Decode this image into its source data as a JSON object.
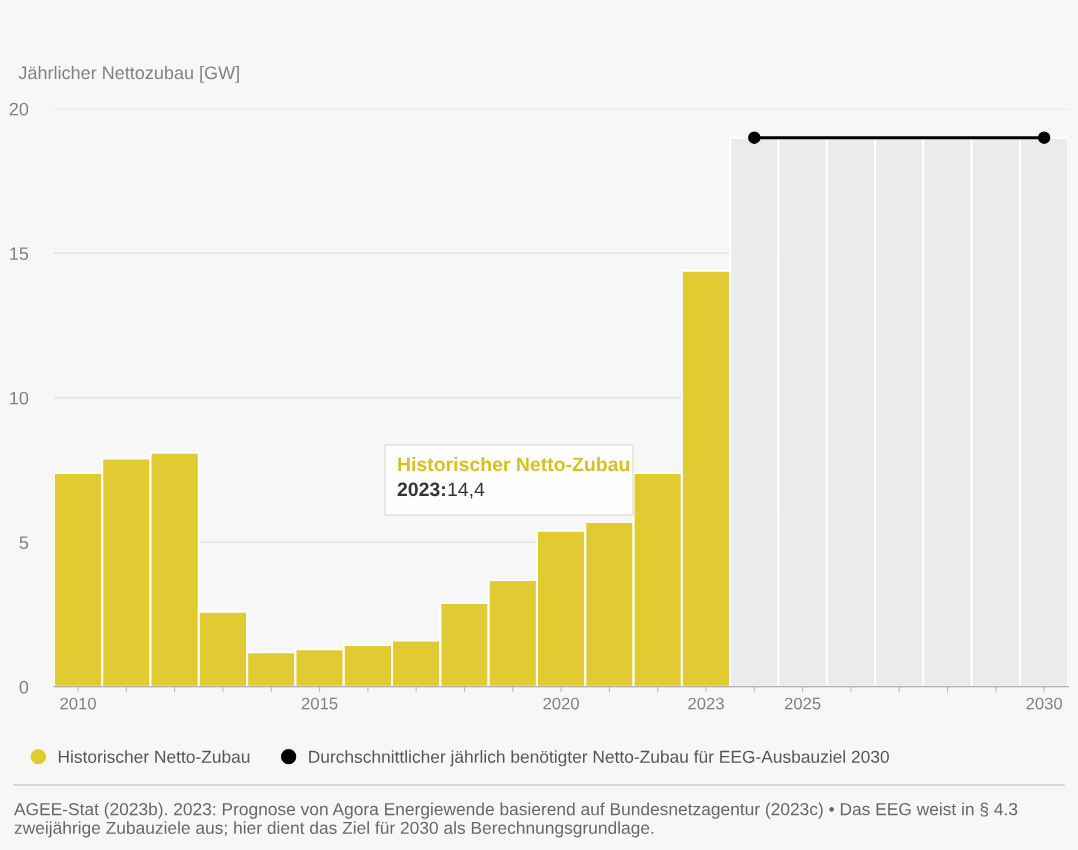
{
  "chart_data": {
    "type": "bar",
    "ylabel": "Jährlicher Nettozubau [GW]",
    "categories": [
      "2010",
      null,
      null,
      null,
      null,
      "2015",
      null,
      null,
      null,
      null,
      "2020",
      null,
      null,
      "2023",
      null,
      "2025",
      null,
      null,
      null,
      null,
      "2030"
    ],
    "series": [
      {
        "name": "Historischer Netto-Zubau",
        "color": "#e2ca33",
        "values": [
          7.4,
          7.9,
          8.1,
          2.6,
          1.2,
          1.3,
          1.45,
          1.6,
          2.9,
          3.7,
          5.4,
          5.7,
          7.4,
          14.4,
          null,
          null,
          null,
          null,
          null,
          null,
          null
        ]
      },
      {
        "color": "#ebebeb",
        "values": [
          null,
          null,
          null,
          null,
          null,
          null,
          null,
          null,
          null,
          null,
          null,
          null,
          null,
          null,
          19,
          19,
          19,
          19,
          19,
          19,
          19
        ]
      },
      {
        "name": "Durchschnittlicher jährlich benötigter Netto-Zubau für EEG-Ausbauziel 2030",
        "type": "line",
        "color": "#000000",
        "values": [
          null,
          null,
          null,
          null,
          null,
          null,
          null,
          null,
          null,
          null,
          null,
          null,
          null,
          null,
          19,
          null,
          null,
          null,
          null,
          null,
          19
        ],
        "marker": "circle",
        "line_style": "solid"
      }
    ],
    "ylim": [
      0,
      20
    ],
    "yticks": [
      0,
      5,
      10,
      15,
      20
    ],
    "grid": "y",
    "legend": "bottom",
    "annotations": [
      "Historischer Netto-Zubau",
      "2023:",
      "14,4",
      "AGEE-Stat (2023b). 2023: Prognose von Agora Energiewende basierend auf Bundesnetzagentur (2023c) • Das EEG weist in § 4.3 zweijährige Zubauziele aus; hier dient das Ziel für 2030 als Berechnungsgrundlage."
    ]
  }
}
